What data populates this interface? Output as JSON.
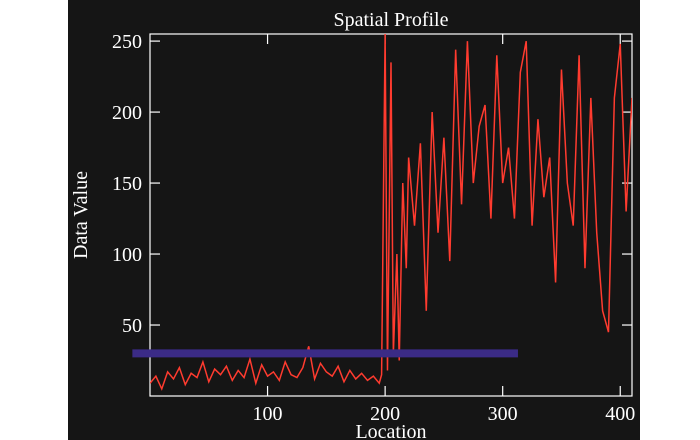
{
  "colors": {
    "background": "#151515",
    "foreground": "#ffffff",
    "profile_line": "#ff3b2f",
    "reference_bar": "#3b2b86"
  },
  "chart_data": {
    "type": "line",
    "title": "Spatial Profile",
    "xlabel": "Location",
    "ylabel": "Data Value",
    "xlim": [
      0,
      410
    ],
    "ylim": [
      0,
      255
    ],
    "grid": false,
    "x_ticks": [
      100,
      200,
      300,
      400
    ],
    "y_ticks": [
      50,
      100,
      150,
      200,
      250
    ],
    "series": [
      {
        "color": "#ff3b2f",
        "x": [
          0,
          5,
          10,
          15,
          20,
          25,
          30,
          35,
          40,
          45,
          50,
          55,
          60,
          65,
          70,
          75,
          80,
          85,
          90,
          95,
          100,
          105,
          110,
          115,
          120,
          125,
          130,
          135,
          140,
          145,
          150,
          155,
          160,
          165,
          170,
          175,
          180,
          185,
          190,
          195,
          197,
          200,
          202,
          205,
          207,
          210,
          212,
          215,
          218,
          220,
          225,
          230,
          235,
          240,
          245,
          250,
          255,
          260,
          265,
          270,
          275,
          280,
          285,
          290,
          295,
          300,
          305,
          310,
          315,
          320,
          325,
          330,
          335,
          340,
          345,
          350,
          355,
          360,
          365,
          370,
          375,
          380,
          385,
          390,
          395,
          400,
          405,
          410
        ],
        "values": [
          9,
          14,
          5,
          17,
          12,
          20,
          8,
          16,
          13,
          24,
          10,
          19,
          15,
          21,
          11,
          18,
          13,
          26,
          9,
          22,
          14,
          17,
          11,
          24,
          15,
          13,
          20,
          35,
          12,
          23,
          17,
          14,
          21,
          10,
          18,
          12,
          16,
          11,
          14,
          9,
          15,
          255,
          18,
          235,
          30,
          100,
          25,
          150,
          90,
          168,
          120,
          178,
          60,
          200,
          115,
          182,
          95,
          244,
          135,
          250,
          150,
          190,
          205,
          125,
          240,
          150,
          175,
          125,
          228,
          250,
          120,
          195,
          140,
          168,
          80,
          230,
          150,
          120,
          240,
          90,
          210,
          115,
          60,
          45,
          210,
          248,
          130,
          210
        ]
      }
    ],
    "reference_bar": {
      "y": 30,
      "x_range": [
        -15,
        313
      ]
    }
  }
}
